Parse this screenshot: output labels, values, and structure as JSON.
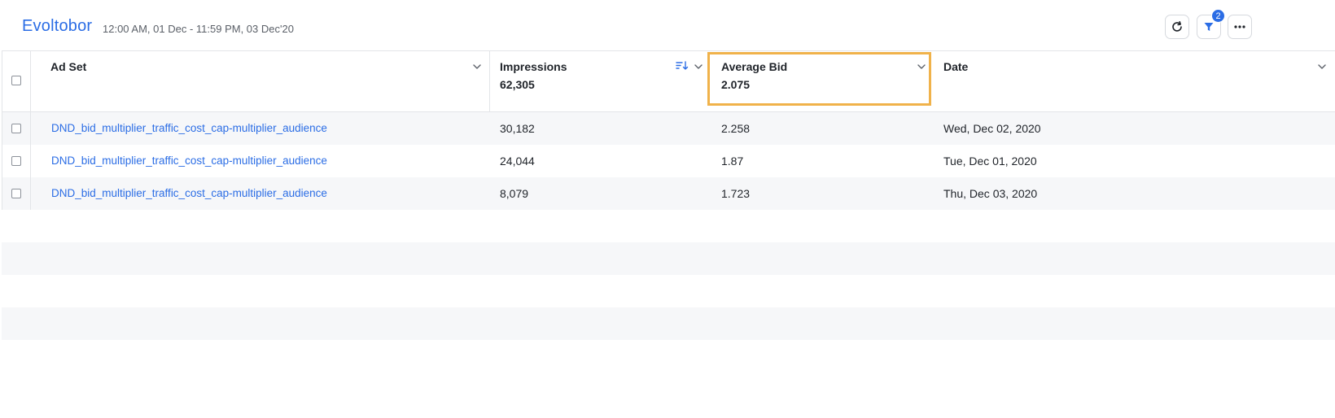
{
  "header": {
    "title": "Evoltobor",
    "date_range": "12:00 AM, 01 Dec - 11:59 PM, 03 Dec'20",
    "filter_badge": "2",
    "refresh_icon": "refresh-icon",
    "filter_icon": "filter-icon",
    "more_icon": "more-horizontal-icon"
  },
  "table": {
    "columns": [
      {
        "label": "Ad Set",
        "aggregate": ""
      },
      {
        "label": "Impressions",
        "aggregate": "62,305"
      },
      {
        "label": "Average Bid",
        "aggregate": "2.075"
      },
      {
        "label": "Date",
        "aggregate": ""
      }
    ],
    "rows": [
      {
        "ad_set": "DND_bid_multiplier_traffic_cost_cap-multiplier_audience",
        "impressions": "30,182",
        "average_bid": "2.258",
        "date": "Wed, Dec 02, 2020"
      },
      {
        "ad_set": "DND_bid_multiplier_traffic_cost_cap-multiplier_audience",
        "impressions": "24,044",
        "average_bid": "1.87",
        "date": "Tue, Dec 01, 2020"
      },
      {
        "ad_set": "DND_bid_multiplier_traffic_cost_cap-multiplier_audience",
        "impressions": "8,079",
        "average_bid": "1.723",
        "date": "Thu, Dec 03, 2020"
      }
    ]
  },
  "colors": {
    "accent": "#2b6de5",
    "highlight": "#f0b24a",
    "row_shade": "#f6f7f9"
  }
}
